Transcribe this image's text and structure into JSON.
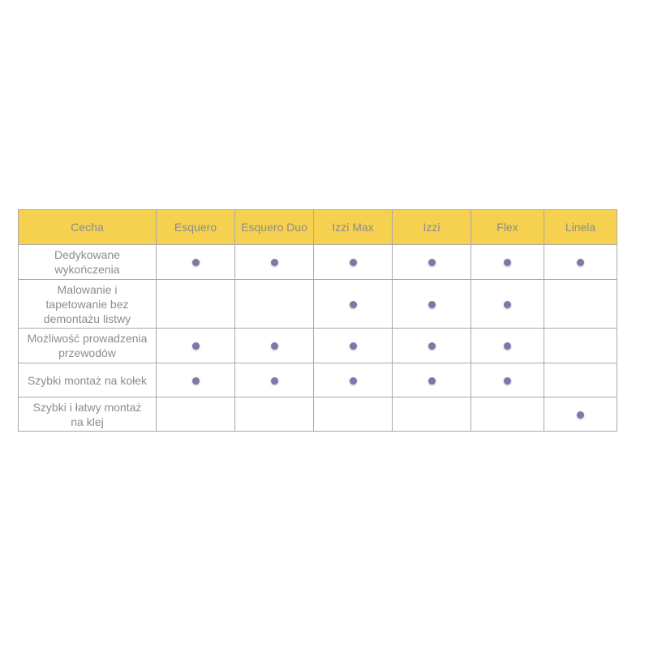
{
  "table": {
    "headers": [
      "Cecha",
      "Esquero",
      "Esquero Duo",
      "Izzi Max",
      "Izzi",
      "Flex",
      "Linela"
    ],
    "rows": [
      {
        "feature": "Dedykowane wykończenia",
        "values": [
          true,
          true,
          true,
          true,
          true,
          true
        ]
      },
      {
        "feature": "Malowanie i tapetowanie bez demontażu listwy",
        "values": [
          false,
          false,
          true,
          true,
          true,
          false
        ]
      },
      {
        "feature": "Możliwość prowadzenia przewodów",
        "values": [
          true,
          true,
          true,
          true,
          true,
          false
        ]
      },
      {
        "feature": "Szybki montaż na kołek",
        "values": [
          true,
          true,
          true,
          true,
          true,
          false
        ]
      },
      {
        "feature": "Szybki i łatwy montaż na klej",
        "values": [
          false,
          false,
          false,
          false,
          false,
          true
        ]
      }
    ],
    "header_color": "#f5d14f",
    "dot_color": "#7a79a8",
    "dot_icon": "bullet-dot-icon"
  }
}
